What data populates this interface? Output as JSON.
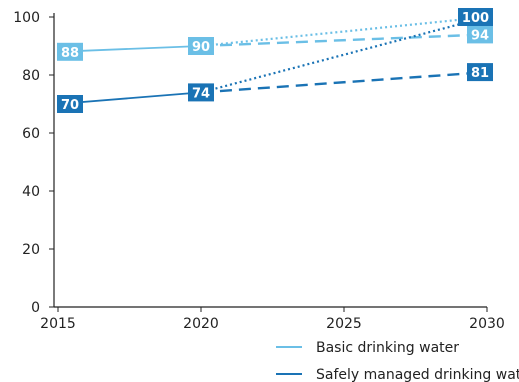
{
  "chart_data": {
    "type": "line",
    "x_ticks": [
      2015,
      2020,
      2025,
      2030
    ],
    "y_ticks": [
      0,
      20,
      40,
      60,
      80,
      100
    ],
    "xlim": [
      2015,
      2030
    ],
    "ylim": [
      0,
      100
    ],
    "grid": false,
    "legend_position": "bottom-right",
    "series": [
      {
        "name": "Basic drinking water",
        "color": "#6bbfe6",
        "actual": [
          {
            "x": 2015,
            "y": 88
          },
          {
            "x": 2020,
            "y": 90
          }
        ],
        "projection": [
          {
            "x": 2020,
            "y": 90
          },
          {
            "x": 2030,
            "y": 94
          }
        ],
        "target": [
          {
            "x": 2020,
            "y": 90
          },
          {
            "x": 2030,
            "y": 100
          }
        ],
        "labels": [
          {
            "x": 2015,
            "y": 88,
            "text": "88"
          },
          {
            "x": 2020,
            "y": 90,
            "text": "90"
          },
          {
            "x": 2030,
            "y": 94,
            "text": "94"
          }
        ]
      },
      {
        "name": "Safely managed drinking water",
        "color": "#1a73b5",
        "actual": [
          {
            "x": 2015,
            "y": 70
          },
          {
            "x": 2020,
            "y": 74
          }
        ],
        "projection": [
          {
            "x": 2020,
            "y": 74
          },
          {
            "x": 2030,
            "y": 81
          }
        ],
        "target": [
          {
            "x": 2020,
            "y": 74
          },
          {
            "x": 2030,
            "y": 100
          }
        ],
        "labels": [
          {
            "x": 2015,
            "y": 70,
            "text": "70"
          },
          {
            "x": 2020,
            "y": 74,
            "text": "74"
          },
          {
            "x": 2030,
            "y": 81,
            "text": "81"
          },
          {
            "x": 2030,
            "y": 100,
            "text": "100"
          }
        ]
      }
    ]
  }
}
